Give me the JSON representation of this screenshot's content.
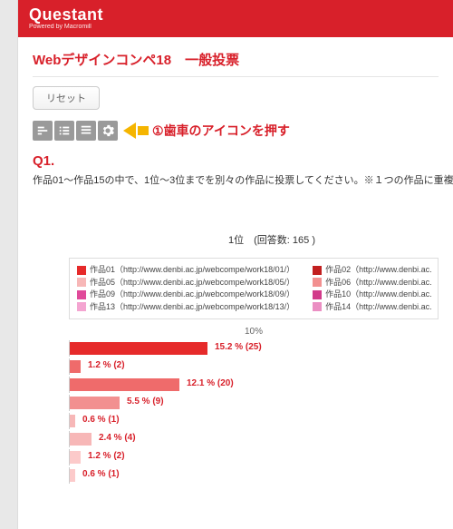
{
  "brand": {
    "name": "Questant",
    "tagline": "Powered by Macromill"
  },
  "page_title": "Webデザインコンペ18　一般投票",
  "reset_label": "リセット",
  "callout": {
    "number": "①",
    "text": "歯車のアイコンを押す"
  },
  "question": {
    "code": "Q1.",
    "text": "作品01～作品15の中で、1位～3位までを別々の作品に投票してください。※１つの作品に重複",
    "rank_label": "1位　(回答数: 165 )"
  },
  "legend": {
    "col1": [
      {
        "color": "#e62a2a",
        "label": "作品01（http://www.denbi.ac.jp/webcompe/work18/01/）"
      },
      {
        "color": "#f7b7b7",
        "label": "作品05（http://www.denbi.ac.jp/webcompe/work18/05/）"
      },
      {
        "color": "#e04a9a",
        "label": "作品09（http://www.denbi.ac.jp/webcompe/work18/09/）"
      },
      {
        "color": "#f4a5d1",
        "label": "作品13（http://www.denbi.ac.jp/webcompe/work18/13/）"
      }
    ],
    "col2": [
      {
        "color": "#c21f1f",
        "label": "作品02（http://www.denbi.ac."
      },
      {
        "color": "#f29090",
        "label": "作品06（http://www.denbi.ac."
      },
      {
        "color": "#d23b8a",
        "label": "作品10（http://www.denbi.ac."
      },
      {
        "color": "#eb8fc3",
        "label": "作品14（http://www.denbi.ac."
      }
    ]
  },
  "chart": {
    "axis_top": "10%",
    "max_pct": 18,
    "bars": [
      {
        "pct": 15.2,
        "label": "15.2 % (25)",
        "color": "#e62a2a"
      },
      {
        "pct": 1.2,
        "label": "1.2 % (2)",
        "color": "#ef6b6b"
      },
      {
        "pct": 12.1,
        "label": "12.1 % (20)",
        "color": "#ef6b6b"
      },
      {
        "pct": 5.5,
        "label": "5.5 % (9)",
        "color": "#f29090"
      },
      {
        "pct": 0.6,
        "label": "0.6 % (1)",
        "color": "#f7b7b7"
      },
      {
        "pct": 2.4,
        "label": "2.4 % (4)",
        "color": "#f7b7b7"
      },
      {
        "pct": 1.2,
        "label": "1.2 % (2)",
        "color": "#fccaca"
      },
      {
        "pct": 0.6,
        "label": "0.6 % (1)",
        "color": "#fccaca"
      }
    ]
  }
}
